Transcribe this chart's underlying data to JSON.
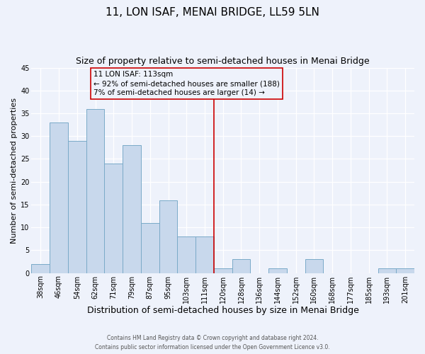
{
  "title": "11, LON ISAF, MENAI BRIDGE, LL59 5LN",
  "subtitle": "Size of property relative to semi-detached houses in Menai Bridge",
  "xlabel": "Distribution of semi-detached houses by size in Menai Bridge",
  "ylabel": "Number of semi-detached properties",
  "categories": [
    "38sqm",
    "46sqm",
    "54sqm",
    "62sqm",
    "71sqm",
    "79sqm",
    "87sqm",
    "95sqm",
    "103sqm",
    "111sqm",
    "120sqm",
    "128sqm",
    "136sqm",
    "144sqm",
    "152sqm",
    "160sqm",
    "168sqm",
    "177sqm",
    "185sqm",
    "193sqm",
    "201sqm"
  ],
  "values": [
    2,
    33,
    29,
    36,
    24,
    28,
    11,
    16,
    8,
    8,
    1,
    3,
    0,
    1,
    0,
    3,
    0,
    0,
    0,
    1,
    1
  ],
  "bar_color": "#c8d8ec",
  "bar_edge_color": "#7aaac8",
  "vline_color": "#cc0000",
  "box_edge_color": "#cc0000",
  "marker_label": "11 LON ISAF: 113sqm",
  "annotation_line1": "← 92% of semi-detached houses are smaller (188)",
  "annotation_line2": "7% of semi-detached houses are larger (14) →",
  "vline_x_index": 9.5,
  "ylim": [
    0,
    45
  ],
  "yticks": [
    0,
    5,
    10,
    15,
    20,
    25,
    30,
    35,
    40,
    45
  ],
  "title_fontsize": 11,
  "subtitle_fontsize": 9,
  "xlabel_fontsize": 9,
  "ylabel_fontsize": 8,
  "tick_fontsize": 7,
  "annotation_fontsize": 7.5,
  "footer_line1": "Contains HM Land Registry data © Crown copyright and database right 2024.",
  "footer_line2": "Contains public sector information licensed under the Open Government Licence v3.0.",
  "background_color": "#eef2fb"
}
